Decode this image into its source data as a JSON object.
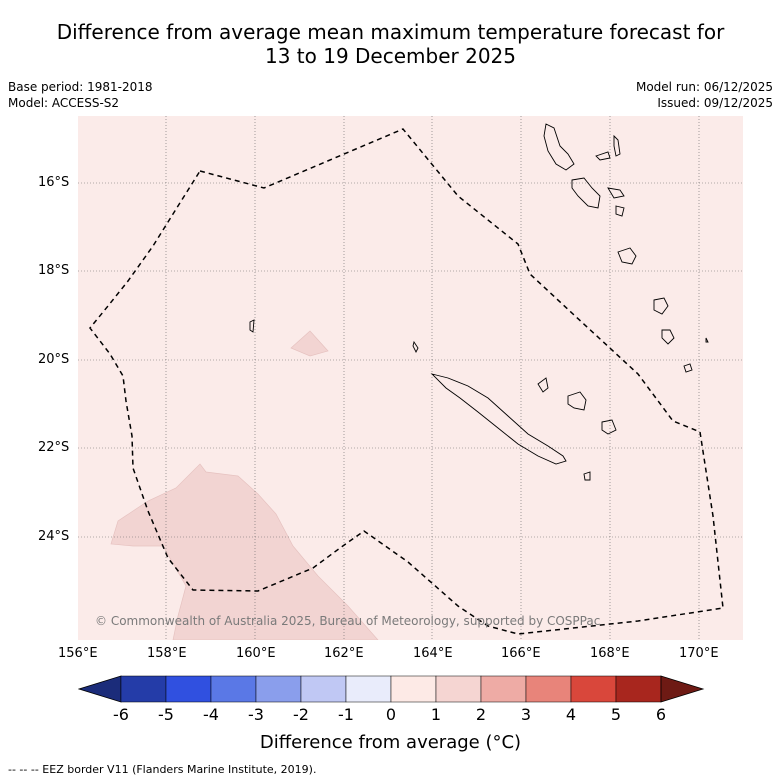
{
  "title": {
    "line1": "Difference from average mean maximum temperature forecast for",
    "line2": "13 to 19 December 2025"
  },
  "meta": {
    "base_period": "Base period: 1981-2018",
    "model": "Model: ACCESS-S2",
    "model_run": "Model run: 06/12/2025",
    "issued": "Issued: 09/12/2025"
  },
  "axes": {
    "lon_labels": [
      "156°E",
      "158°E",
      "160°E",
      "162°E",
      "164°E",
      "166°E",
      "168°E",
      "170°E"
    ],
    "lat_labels": [
      "16°S",
      "18°S",
      "20°S",
      "22°S",
      "24°S"
    ]
  },
  "copyright": "© Commonwealth of Australia 2025, Bureau of Meteorology, supported by COSPPac",
  "colorbar": {
    "title": "Difference from average (°C)",
    "ticks": [
      "-6",
      "-5",
      "-4",
      "-3",
      "-2",
      "-1",
      "0",
      "1",
      "2",
      "3",
      "4",
      "5",
      "6"
    ],
    "colors": [
      "#243ca8",
      "#3050e0",
      "#5a78e6",
      "#8a9eec",
      "#c0c8f4",
      "#e9ecfb",
      "#fdeae6",
      "#f5d5d2",
      "#eeaba5",
      "#e8847a",
      "#d9473b",
      "#a8261e"
    ],
    "under_color": "#1b2c7a",
    "over_color": "#6e1a14"
  },
  "map_colors": {
    "background": "#fbebe9",
    "warmer_patch": "#f2d4d2"
  },
  "footnote": "--  --  -- EEZ border V11 (Flanders Marine Institute, 2019)."
}
